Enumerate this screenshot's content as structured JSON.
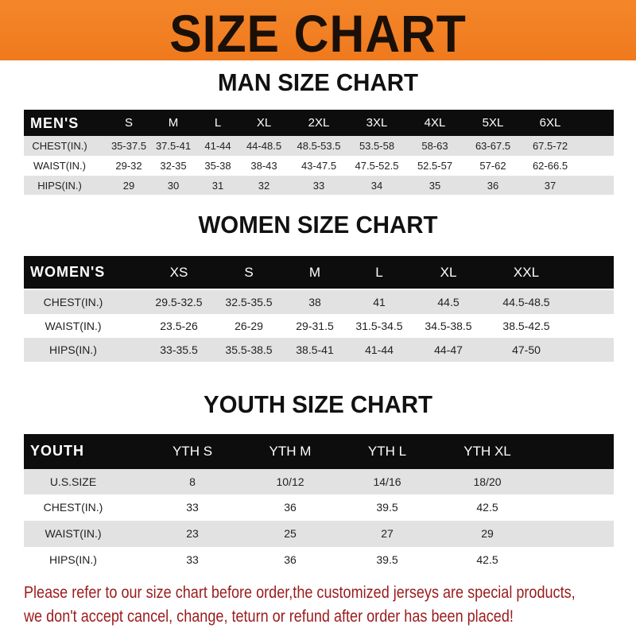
{
  "banner": {
    "title": "SIZE CHART",
    "color": "#f07a1e"
  },
  "men": {
    "title": "MAN SIZE CHART",
    "header": "MEN'S",
    "sizes": [
      "S",
      "M",
      "L",
      "XL",
      "2XL",
      "3XL",
      "4XL",
      "5XL",
      "6XL"
    ],
    "rows": [
      {
        "label": "CHEST(IN.)",
        "values": [
          "35-37.5",
          "37.5-41",
          "41-44",
          "44-48.5",
          "48.5-53.5",
          "53.5-58",
          "58-63",
          "63-67.5",
          "67.5-72"
        ]
      },
      {
        "label": "WAIST(IN.)",
        "values": [
          "29-32",
          "32-35",
          "35-38",
          "38-43",
          "43-47.5",
          "47.5-52.5",
          "52.5-57",
          "57-62",
          "62-66.5"
        ]
      },
      {
        "label": "HIPS(IN.)",
        "values": [
          "29",
          "30",
          "31",
          "32",
          "33",
          "34",
          "35",
          "36",
          "37"
        ]
      }
    ]
  },
  "women": {
    "title": "WOMEN SIZE CHART",
    "header": "WOMEN'S",
    "sizes": [
      "XS",
      "S",
      "M",
      "L",
      "XL",
      "XXL"
    ],
    "rows": [
      {
        "label": "CHEST(IN.)",
        "values": [
          "29.5-32.5",
          "32.5-35.5",
          "38",
          "41",
          "44.5",
          "44.5-48.5"
        ]
      },
      {
        "label": "WAIST(IN.)",
        "values": [
          "23.5-26",
          "26-29",
          "29-31.5",
          "31.5-34.5",
          "34.5-38.5",
          "38.5-42.5"
        ]
      },
      {
        "label": "HIPS(IN.)",
        "values": [
          "33-35.5",
          "35.5-38.5",
          "38.5-41",
          "41-44",
          "44-47",
          "47-50"
        ]
      }
    ]
  },
  "youth": {
    "title": "YOUTH SIZE CHART",
    "header": "YOUTH",
    "sizes": [
      "YTH S",
      "YTH M",
      "YTH L",
      "YTH XL"
    ],
    "rows": [
      {
        "label": "U.S.SIZE",
        "values": [
          "8",
          "10/12",
          "14/16",
          "18/20"
        ]
      },
      {
        "label": "CHEST(IN.)",
        "values": [
          "33",
          "36",
          "39.5",
          "42.5"
        ]
      },
      {
        "label": "WAIST(IN.)",
        "values": [
          "23",
          "25",
          "27",
          "29"
        ]
      },
      {
        "label": "HIPS(IN.)",
        "values": [
          "33",
          "36",
          "39.5",
          "42.5"
        ]
      }
    ]
  },
  "note": {
    "line1": "Please refer to our size chart before order,the customized jerseys are special products,",
    "line2": "we don't accept cancel, change, teturn or refund after order has been placed!",
    "color": "#9b1b1b"
  }
}
